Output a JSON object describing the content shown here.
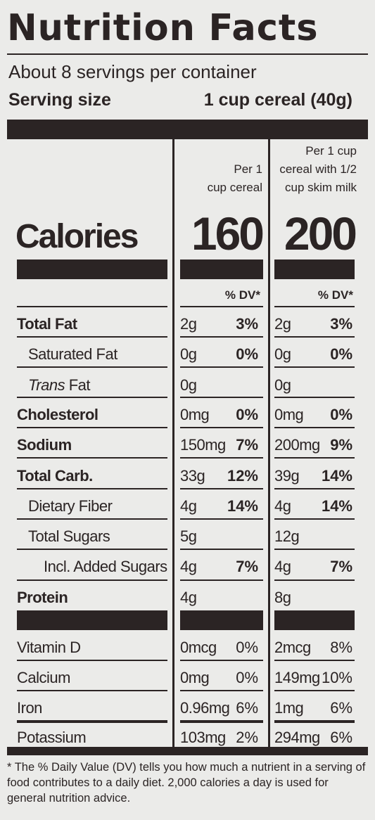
{
  "title": "Nutrition Facts",
  "servings_per_container": "About 8 servings per container",
  "serving_size_label": "Serving size",
  "serving_size_value": "1 cup cereal (40g)",
  "columns": [
    {
      "head_line1": "",
      "head_line2": "Per 1",
      "head_line3": "cup cereal",
      "calories": "160"
    },
    {
      "head_line1": "Per 1 cup",
      "head_line2": "cereal with 1/2",
      "head_line3": "cup skim milk",
      "calories": "200"
    }
  ],
  "calories_label": "Calories",
  "dv_label": "% DV*",
  "nutrients": [
    {
      "name": "Total Fat",
      "c1_amt": "2g",
      "c1_dv": "3%",
      "c2_amt": "2g",
      "c2_dv": "3%"
    },
    {
      "name": "Saturated Fat",
      "c1_amt": "0g",
      "c1_dv": "0%",
      "c2_amt": "0g",
      "c2_dv": "0%"
    },
    {
      "name_italic": "Trans",
      "name_rest": " Fat",
      "c1_amt": "0g",
      "c1_dv": "",
      "c2_amt": "0g",
      "c2_dv": ""
    },
    {
      "name": "Cholesterol",
      "c1_amt": "0mg",
      "c1_dv": "0%",
      "c2_amt": "0mg",
      "c2_dv": "0%"
    },
    {
      "name": "Sodium",
      "c1_amt": "150mg",
      "c1_dv": "7%",
      "c2_amt": "200mg",
      "c2_dv": "9%"
    },
    {
      "name": "Total Carb.",
      "c1_amt": "33g",
      "c1_dv": "12%",
      "c2_amt": "39g",
      "c2_dv": "14%"
    },
    {
      "name": "Dietary Fiber",
      "c1_amt": "4g",
      "c1_dv": "14%",
      "c2_amt": "4g",
      "c2_dv": "14%"
    },
    {
      "name": "Total Sugars",
      "c1_amt": "5g",
      "c1_dv": "",
      "c2_amt": "12g",
      "c2_dv": ""
    },
    {
      "name": "Incl. Added Sugars",
      "c1_amt": "4g",
      "c1_dv": "7%",
      "c2_amt": "4g",
      "c2_dv": "7%"
    },
    {
      "name": "Protein",
      "c1_amt": "4g",
      "c1_dv": "",
      "c2_amt": "8g",
      "c2_dv": ""
    }
  ],
  "vitamins": [
    {
      "name": "Vitamin D",
      "c1_amt": "0mcg",
      "c1_dv": "0%",
      "c2_amt": "2mcg",
      "c2_dv": "8%"
    },
    {
      "name": "Calcium",
      "c1_amt": "0mg",
      "c1_dv": "0%",
      "c2_amt": "149mg",
      "c2_dv": "10%"
    },
    {
      "name": "Iron",
      "c1_amt": "0.96mg",
      "c1_dv": "6%",
      "c2_amt": "1mg",
      "c2_dv": "6%"
    },
    {
      "name": "Potassium",
      "c1_amt": "103mg",
      "c1_dv": "2%",
      "c2_amt": "294mg",
      "c2_dv": "6%"
    }
  ],
  "footnote": "* The % Daily Value (DV) tells you how much a nutrient in a serving of food contributes to a daily diet. 2,000 calories a day is used for general nutrition advice."
}
